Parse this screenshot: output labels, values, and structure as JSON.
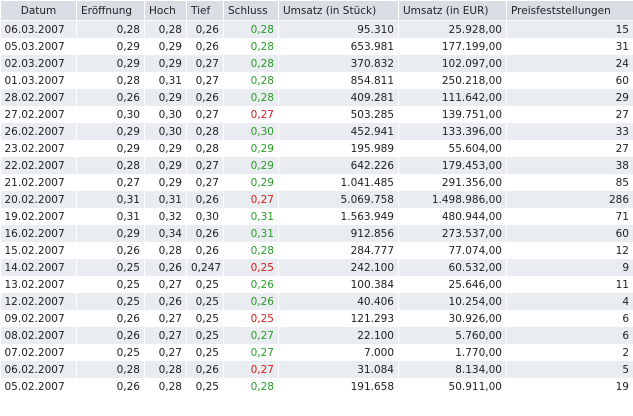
{
  "table": {
    "header": [
      "Datum",
      "Eröffnung",
      "Hoch",
      "Tief",
      "Schluss",
      "Umsatz (in Stück)",
      "Umsatz (in EUR)",
      "Preisfeststellungen"
    ],
    "rows": [
      [
        "06.03.2007",
        "0,28",
        "0,28",
        "0,26",
        "0,28",
        "95.310",
        "25.928,00",
        "15"
      ],
      [
        "05.03.2007",
        "0,29",
        "0,29",
        "0,26",
        "0,28",
        "653.981",
        "177.199,00",
        "31"
      ],
      [
        "02.03.2007",
        "0,29",
        "0,29",
        "0,27",
        "0,28",
        "370.832",
        "102.097,00",
        "24"
      ],
      [
        "01.03.2007",
        "0,28",
        "0,31",
        "0,27",
        "0,28",
        "854.811",
        "250.218,00",
        "60"
      ],
      [
        "28.02.2007",
        "0,26",
        "0,29",
        "0,26",
        "0,28",
        "409.281",
        "111.642,00",
        "29"
      ],
      [
        "27.02.2007",
        "0,30",
        "0,30",
        "0,27",
        "0,27",
        "503.285",
        "139.751,00",
        "27"
      ],
      [
        "26.02.2007",
        "0,29",
        "0,30",
        "0,28",
        "0,30",
        "452.941",
        "133.396,00",
        "33"
      ],
      [
        "23.02.2007",
        "0,29",
        "0,29",
        "0,28",
        "0,29",
        "195.989",
        "55.604,00",
        "27"
      ],
      [
        "22.02.2007",
        "0,28",
        "0,29",
        "0,27",
        "0,29",
        "642.226",
        "179.453,00",
        "38"
      ],
      [
        "21.02.2007",
        "0,27",
        "0,29",
        "0,27",
        "0,29",
        "1.041.485",
        "291.356,00",
        "85"
      ],
      [
        "20.02.2007",
        "0,31",
        "0,31",
        "0,26",
        "0,27",
        "5.069.758",
        "1.498.986,00",
        "286"
      ],
      [
        "19.02.2007",
        "0,31",
        "0,32",
        "0,30",
        "0,31",
        "1.563.949",
        "480.944,00",
        "71"
      ],
      [
        "16.02.2007",
        "0,29",
        "0,34",
        "0,26",
        "0,31",
        "912.856",
        "273.537,00",
        "60"
      ],
      [
        "15.02.2007",
        "0,26",
        "0,28",
        "0,26",
        "0,28",
        "284.777",
        "77.074,00",
        "12"
      ],
      [
        "14.02.2007",
        "0,25",
        "0,26",
        "0,247",
        "0,25",
        "242.100",
        "60.532,00",
        "9"
      ],
      [
        "13.02.2007",
        "0,25",
        "0,27",
        "0,25",
        "0,26",
        "100.384",
        "25.646,00",
        "11"
      ],
      [
        "12.02.2007",
        "0,25",
        "0,26",
        "0,25",
        "0,26",
        "40.406",
        "10.254,00",
        "4"
      ],
      [
        "09.02.2007",
        "0,26",
        "0,27",
        "0,25",
        "0,25",
        "121.293",
        "30.926,00",
        "6"
      ],
      [
        "08.02.2007",
        "0,26",
        "0,27",
        "0,25",
        "0,27",
        "22.100",
        "5.760,00",
        "6"
      ],
      [
        "07.02.2007",
        "0,25",
        "0,27",
        "0,25",
        "0,27",
        "7.000",
        "1.770,00",
        "2"
      ],
      [
        "06.02.2007",
        "0,28",
        "0,28",
        "0,26",
        "0,27",
        "31.084",
        "8.134,00",
        "5"
      ],
      [
        "05.02.2007",
        "0,26",
        "0,28",
        "0,25",
        "0,28",
        "191.658",
        "50.911,00",
        "19"
      ]
    ],
    "close_colors": [
      "#2a9a2a",
      "#2a9a2a",
      "#2a9a2a",
      "#2a9a2a",
      "#2a9a2a",
      "#d42020",
      "#2a9a2a",
      "#2a9a2a",
      "#2a9a2a",
      "#2a9a2a",
      "#d42020",
      "#2a9a2a",
      "#2a9a2a",
      "#2a9a2a",
      "#d42020",
      "#2a9a2a",
      "#2a9a2a",
      "#d42020",
      "#2a9a2a",
      "#2a9a2a",
      "#d42020",
      "#2a9a2a"
    ]
  }
}
